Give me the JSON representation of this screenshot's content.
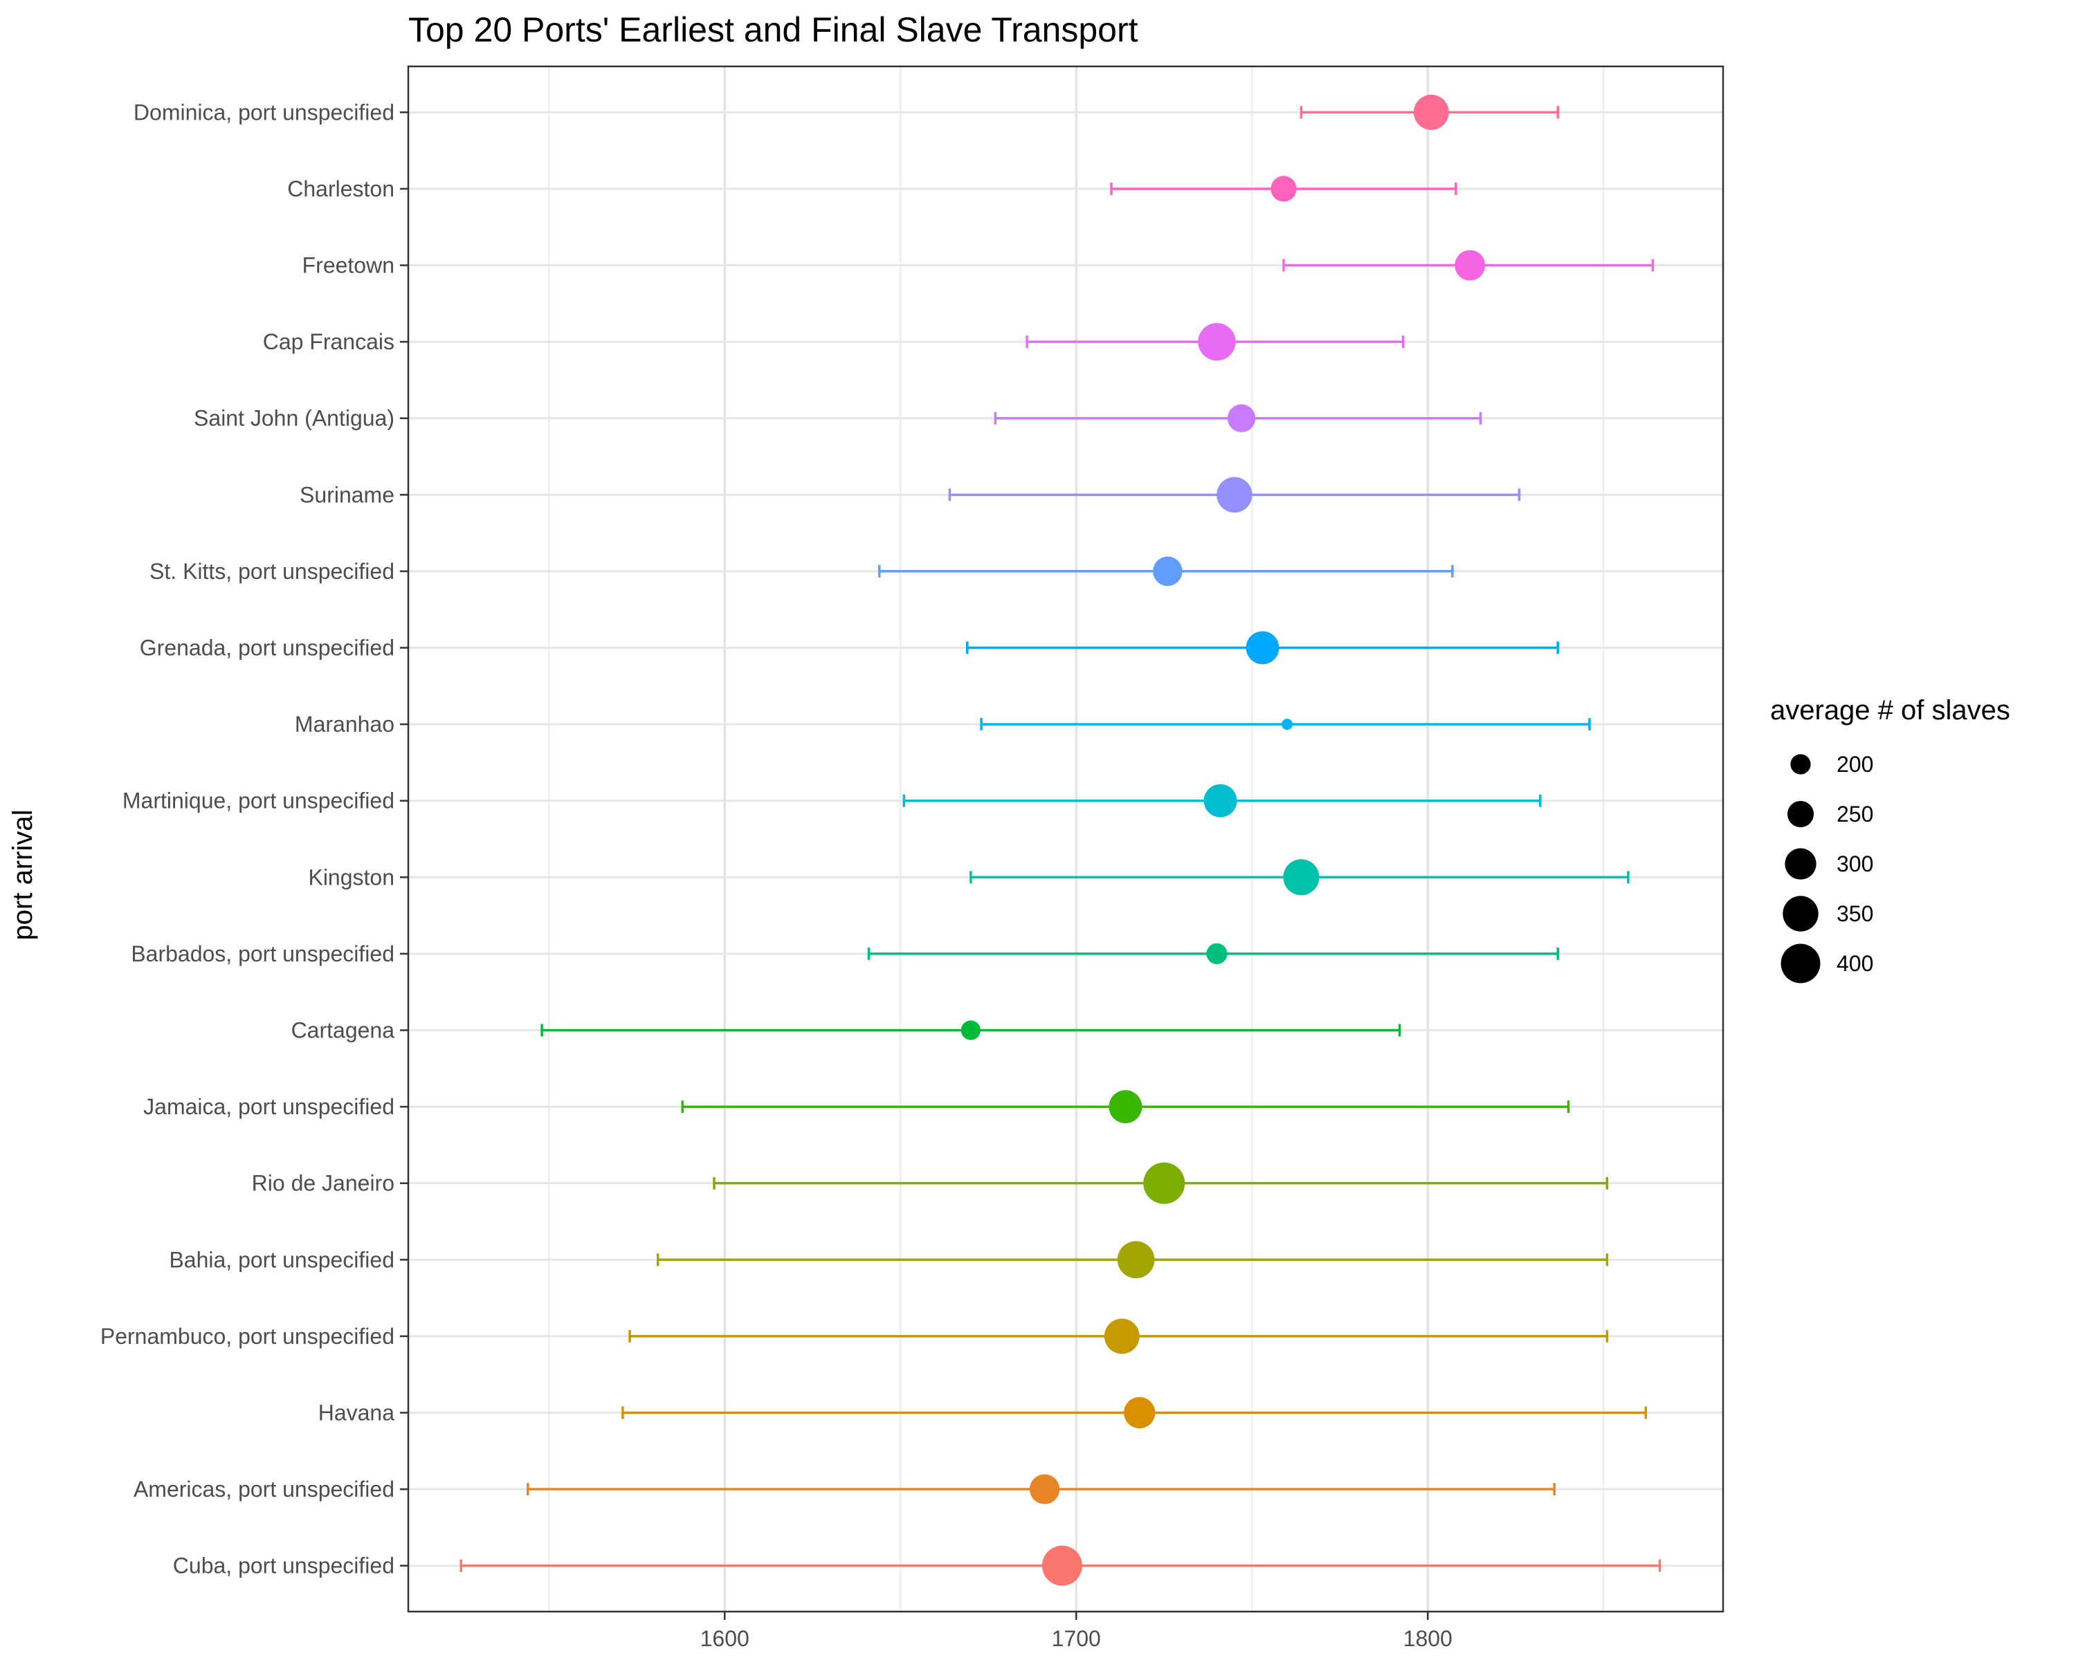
{
  "chart_data": {
    "type": "scatter",
    "title": "Top 20 Ports' Earliest and Final Slave Transport",
    "xlabel": "",
    "ylabel": "port arrival",
    "xlim": [
      1510,
      1884
    ],
    "x_ticks": [
      1600,
      1700,
      1800
    ],
    "grid": true,
    "legend_position": "right",
    "legend": {
      "title": "average # of slaves",
      "entries": [
        200,
        250,
        300,
        350,
        400
      ]
    },
    "size_range": [
      130,
      410
    ],
    "ports": [
      {
        "name": "Dominica, port unspecified",
        "start": 1764,
        "end": 1837,
        "mean": 1801,
        "avg_slaves": 345,
        "color": "#FF6C91"
      },
      {
        "name": "Charleston",
        "start": 1710,
        "end": 1808,
        "mean": 1759,
        "avg_slaves": 245,
        "color": "#FF62BC"
      },
      {
        "name": "Freetown",
        "start": 1759,
        "end": 1864,
        "mean": 1812,
        "avg_slaves": 290,
        "color": "#F564E3"
      },
      {
        "name": "Cap Francais",
        "start": 1686,
        "end": 1793,
        "mean": 1740,
        "avg_slaves": 375,
        "color": "#E76BF3"
      },
      {
        "name": "Saint John (Antigua)",
        "start": 1677,
        "end": 1815,
        "mean": 1747,
        "avg_slaves": 265,
        "color": "#C77CFF"
      },
      {
        "name": "Suriname",
        "start": 1664,
        "end": 1826,
        "mean": 1745,
        "avg_slaves": 350,
        "color": "#9590FF"
      },
      {
        "name": "St. Kitts, port unspecified",
        "start": 1644,
        "end": 1807,
        "mean": 1726,
        "avg_slaves": 280,
        "color": "#619CFF"
      },
      {
        "name": "Grenada, port unspecified",
        "start": 1669,
        "end": 1837,
        "mean": 1753,
        "avg_slaves": 320,
        "color": "#00A9FF"
      },
      {
        "name": "Maranhao",
        "start": 1673,
        "end": 1846,
        "mean": 1760,
        "avg_slaves": 150,
        "color": "#00B4EF"
      },
      {
        "name": "Martinique, port unspecified",
        "start": 1651,
        "end": 1832,
        "mean": 1741,
        "avg_slaves": 320,
        "color": "#00BDD0"
      },
      {
        "name": "Kingston",
        "start": 1670,
        "end": 1857,
        "mean": 1764,
        "avg_slaves": 355,
        "color": "#00C1A9"
      },
      {
        "name": "Barbados, port unspecified",
        "start": 1641,
        "end": 1837,
        "mean": 1740,
        "avg_slaves": 205,
        "color": "#00BF7D"
      },
      {
        "name": "Cartagena",
        "start": 1548,
        "end": 1792,
        "mean": 1670,
        "avg_slaves": 195,
        "color": "#00BA38"
      },
      {
        "name": "Jamaica, port unspecified",
        "start": 1588,
        "end": 1840,
        "mean": 1714,
        "avg_slaves": 320,
        "color": "#39B600"
      },
      {
        "name": "Rio de Janeiro",
        "start": 1597,
        "end": 1851,
        "mean": 1725,
        "avg_slaves": 430,
        "color": "#7CAE00"
      },
      {
        "name": "Bahia, port unspecified",
        "start": 1581,
        "end": 1851,
        "mean": 1717,
        "avg_slaves": 370,
        "color": "#A3A500"
      },
      {
        "name": "Pernambuco, port unspecified",
        "start": 1573,
        "end": 1851,
        "mean": 1713,
        "avg_slaves": 345,
        "color": "#C49A00"
      },
      {
        "name": "Havana",
        "start": 1571,
        "end": 1862,
        "mean": 1718,
        "avg_slaves": 300,
        "color": "#D89000"
      },
      {
        "name": "Americas, port unspecified",
        "start": 1544,
        "end": 1836,
        "mean": 1691,
        "avg_slaves": 285,
        "color": "#E88526"
      },
      {
        "name": "Cuba, port unspecified",
        "start": 1525,
        "end": 1866,
        "mean": 1696,
        "avg_slaves": 410,
        "color": "#F8766D"
      }
    ]
  }
}
